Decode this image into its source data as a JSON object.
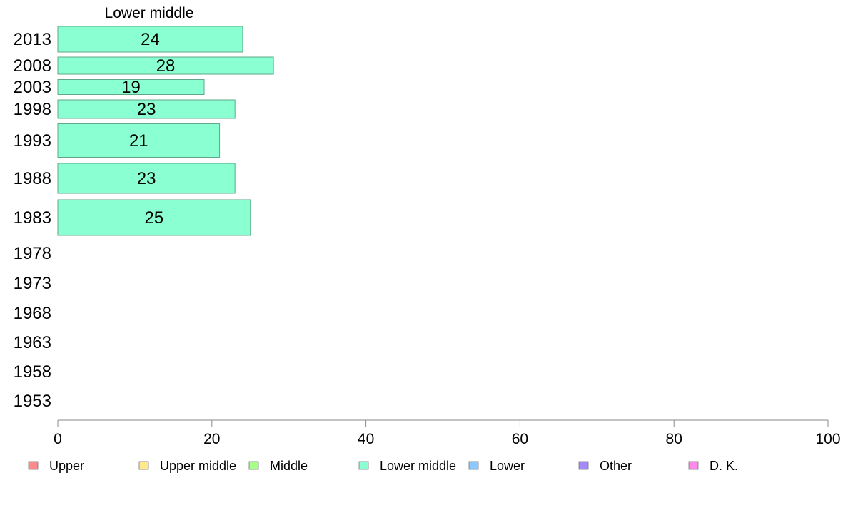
{
  "chart_data": {
    "type": "bar",
    "orientation": "horizontal",
    "title": "Lower middle",
    "categories": [
      "2013",
      "2008",
      "2003",
      "1998",
      "1993",
      "1988",
      "1983",
      "1978",
      "1973",
      "1968",
      "1963",
      "1958",
      "1953"
    ],
    "values": [
      24,
      28,
      19,
      23,
      21,
      23,
      25,
      null,
      null,
      null,
      null,
      null,
      null
    ],
    "value_labels": [
      "24",
      "28",
      "19",
      "23",
      "21",
      "23",
      "25",
      "",
      "",
      "",
      "",
      "",
      ""
    ],
    "bar_color": "#8affd2",
    "xlim": [
      0,
      100
    ],
    "xticks": [
      "0",
      "20",
      "40",
      "60",
      "80",
      "100"
    ],
    "grid": false,
    "legend": {
      "placement": "bottom",
      "entries": [
        {
          "name": "Upper",
          "color": "#ff8a8a"
        },
        {
          "name": "Upper middle",
          "color": "#ffe98a"
        },
        {
          "name": "Middle",
          "color": "#a5ff8a"
        },
        {
          "name": "Lower middle",
          "color": "#8affd2"
        },
        {
          "name": "Lower",
          "color": "#8ac8ff"
        },
        {
          "name": "Other",
          "color": "#a58aff"
        },
        {
          "name": "D. K.",
          "color": "#ff8ae9"
        }
      ]
    }
  }
}
